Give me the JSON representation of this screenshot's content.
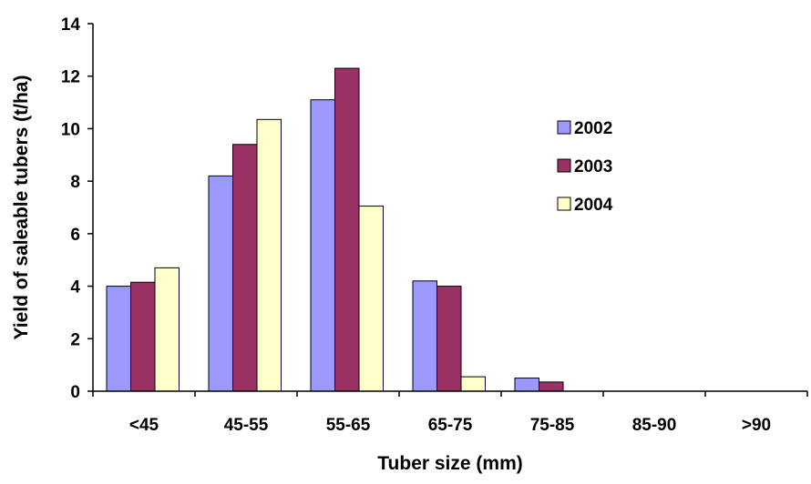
{
  "chart_data": {
    "type": "bar",
    "title": "",
    "xlabel": "Tuber size (mm)",
    "ylabel": "Yield of saleable tubers (t/ha)",
    "categories": [
      "<45",
      "45-55",
      "55-65",
      "65-75",
      "75-85",
      "85-90",
      ">90"
    ],
    "ylim": [
      0,
      14
    ],
    "yticks": [
      0,
      2,
      4,
      6,
      8,
      10,
      12,
      14
    ],
    "grid": false,
    "legend_position": "right",
    "series": [
      {
        "name": "2002",
        "color": "#9999ff",
        "values": [
          4.0,
          8.2,
          11.1,
          4.2,
          0.5,
          0,
          0
        ]
      },
      {
        "name": "2003",
        "color": "#993366",
        "values": [
          4.15,
          9.4,
          12.3,
          4.0,
          0.35,
          0,
          0
        ]
      },
      {
        "name": "2004",
        "color": "#ffffcc",
        "values": [
          4.7,
          10.35,
          7.05,
          0.55,
          0,
          0,
          0
        ]
      }
    ]
  }
}
